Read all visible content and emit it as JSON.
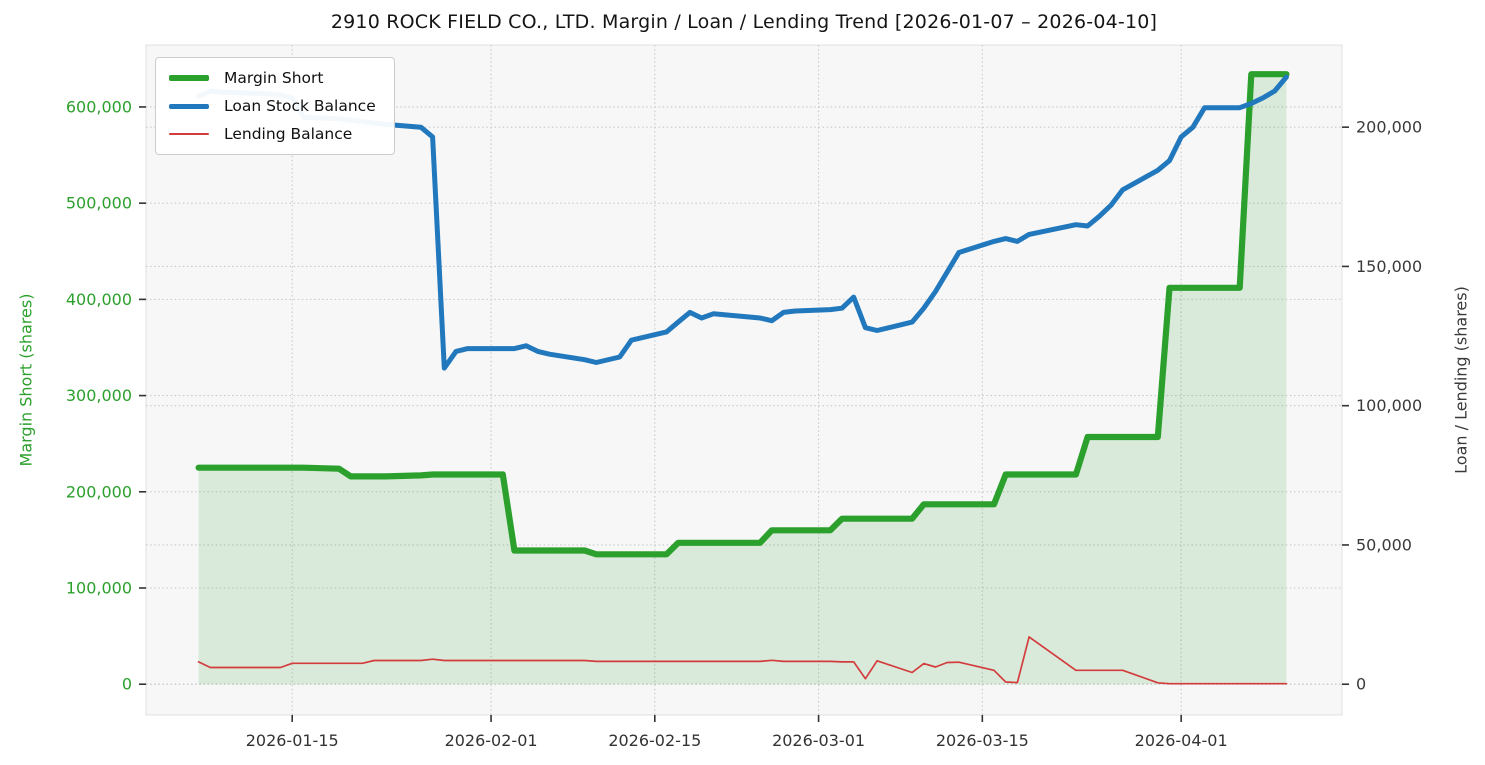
{
  "chart_data": {
    "type": "line",
    "title": "2910 ROCK FIELD CO., LTD. Margin / Loan / Lending Trend [2026-01-07 – 2026-04-10]",
    "date_range": [
      "2026-01-07",
      "2026-04-10"
    ],
    "grid": {
      "style": "dotted",
      "color": "#c9c9c9",
      "on": true
    },
    "plot_background": "#f7f7f8",
    "legend": {
      "position": "upper-left",
      "entries": [
        "Margin Short",
        "Loan Stock Balance",
        "Lending Balance"
      ]
    },
    "x_axis": {
      "xlim": [
        "2026-01-02T12:00:00",
        "2026-04-14T18:00:00"
      ],
      "tick_dates": [
        "2026-01-15",
        "2026-02-01",
        "2026-02-15",
        "2026-03-01",
        "2026-03-15",
        "2026-04-01"
      ],
      "tick_labels": [
        "2026-01-15",
        "2026-02-01",
        "2026-02-15",
        "2026-03-01",
        "2026-03-15",
        "2026-04-01"
      ]
    },
    "left_axis": {
      "label": "Margin Short (shares)",
      "color": "#2ca02c",
      "range": [
        -32000,
        664400
      ],
      "tick_values": [
        0,
        100000,
        200000,
        300000,
        400000,
        500000,
        600000
      ],
      "tick_labels": [
        "0",
        "100,000",
        "200,000",
        "300,000",
        "400,000",
        "500,000",
        "600,000"
      ]
    },
    "right_axis": {
      "label": "Loan / Lending (shares)",
      "color": "#3a3a3a",
      "range": [
        -11050,
        229500
      ],
      "tick_values": [
        0,
        50000,
        100000,
        150000,
        200000
      ],
      "tick_labels": [
        "0",
        "50,000",
        "100,000",
        "150,000",
        "200,000"
      ]
    },
    "dates": [
      "2026-01-07",
      "2026-01-08",
      "2026-01-09",
      "2026-01-13",
      "2026-01-14",
      "2026-01-15",
      "2026-01-16",
      "2026-01-19",
      "2026-01-20",
      "2026-01-21",
      "2026-01-22",
      "2026-01-23",
      "2026-01-26",
      "2026-01-27",
      "2026-01-28",
      "2026-01-29",
      "2026-01-30",
      "2026-02-02",
      "2026-02-03",
      "2026-02-04",
      "2026-02-05",
      "2026-02-06",
      "2026-02-09",
      "2026-02-10",
      "2026-02-12",
      "2026-02-13",
      "2026-02-16",
      "2026-02-17",
      "2026-02-18",
      "2026-02-19",
      "2026-02-20",
      "2026-02-24",
      "2026-02-25",
      "2026-02-26",
      "2026-02-27",
      "2026-03-02",
      "2026-03-03",
      "2026-03-04",
      "2026-03-05",
      "2026-03-06",
      "2026-03-09",
      "2026-03-10",
      "2026-03-11",
      "2026-03-12",
      "2026-03-13",
      "2026-03-16",
      "2026-03-17",
      "2026-03-18",
      "2026-03-19",
      "2026-03-23",
      "2026-03-24",
      "2026-03-25",
      "2026-03-26",
      "2026-03-27",
      "2026-03-30",
      "2026-03-31",
      "2026-04-01",
      "2026-04-02",
      "2026-04-03",
      "2026-04-06",
      "2026-04-07",
      "2026-04-08",
      "2026-04-09",
      "2026-04-10"
    ],
    "series": [
      {
        "name": "Margin Short",
        "axis": "left",
        "color": "#2ca02c",
        "line_width": 6.2,
        "fill": true,
        "fill_opacity": 0.15,
        "values": [
          225000,
          225000,
          225000,
          225000,
          225000,
          225000,
          225000,
          224000,
          216000,
          216000,
          216000,
          216000,
          217000,
          218000,
          218000,
          218000,
          218000,
          218000,
          139000,
          139000,
          139000,
          139000,
          139000,
          135000,
          135000,
          135000,
          135000,
          147000,
          147000,
          147000,
          147000,
          147000,
          160000,
          160000,
          160000,
          160000,
          172000,
          172000,
          172000,
          172000,
          172000,
          187000,
          187000,
          187000,
          187000,
          187000,
          218000,
          218000,
          218000,
          218000,
          257000,
          257000,
          257000,
          257000,
          257000,
          412000,
          412000,
          412000,
          412000,
          412000,
          634000,
          634000,
          634000,
          634000
        ]
      },
      {
        "name": "Loan Stock Balance",
        "axis": "right",
        "color": "#2278bd",
        "line_width": 5,
        "fill": false,
        "values": [
          211000,
          213000,
          212500,
          212000,
          211500,
          210500,
          203500,
          203000,
          202500,
          202000,
          201500,
          201000,
          200000,
          196500,
          113500,
          119500,
          120500,
          120500,
          120500,
          121500,
          119500,
          118500,
          116500,
          115500,
          117500,
          123500,
          126500,
          130000,
          133500,
          131500,
          133000,
          131500,
          130500,
          133500,
          134000,
          134500,
          135000,
          139000,
          128000,
          127000,
          130000,
          135000,
          141000,
          148000,
          155000,
          159000,
          160000,
          159000,
          161500,
          165000,
          164500,
          168000,
          172000,
          177500,
          184500,
          188000,
          196500,
          200000,
          207000,
          207000,
          208500,
          210500,
          213000,
          218000
        ]
      },
      {
        "name": "Lending Balance",
        "axis": "right",
        "color": "#d33c3c",
        "line_width": 1.7,
        "fill": false,
        "values": [
          8000,
          6000,
          6000,
          6000,
          6000,
          7500,
          7500,
          7500,
          7500,
          7500,
          8500,
          8500,
          8500,
          9000,
          8500,
          8500,
          8500,
          8500,
          8500,
          8500,
          8500,
          8500,
          8500,
          8200,
          8200,
          8200,
          8200,
          8200,
          8200,
          8200,
          8200,
          8200,
          8600,
          8200,
          8200,
          8200,
          8000,
          8000,
          2000,
          8400,
          4200,
          7400,
          6200,
          7800,
          7900,
          5000,
          800,
          600,
          17000,
          5000,
          5000,
          5000,
          5000,
          5000,
          500,
          200,
          200,
          200,
          200,
          200,
          200,
          200,
          200,
          200
        ]
      }
    ]
  }
}
